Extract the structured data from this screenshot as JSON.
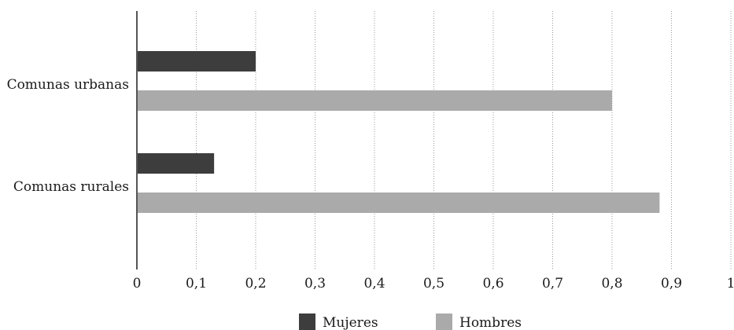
{
  "chart_data": {
    "type": "bar",
    "orientation": "horizontal",
    "categories": [
      "Comunas urbanas",
      "Comunas rurales"
    ],
    "series": [
      {
        "name": "Mujeres",
        "color": "#3d3d3d",
        "values": [
          0.2,
          0.13
        ]
      },
      {
        "name": "Hombres",
        "color": "#aaaaaa",
        "values": [
          0.8,
          0.88
        ]
      }
    ],
    "xlim": [
      0,
      1
    ],
    "xticks": [
      "0",
      "0,1",
      "0,2",
      "0,3",
      "0,4",
      "0,5",
      "0,6",
      "0,7",
      "0,8",
      "0,9",
      "1"
    ],
    "grid": "vertical-dotted",
    "legend_position": "bottom"
  }
}
